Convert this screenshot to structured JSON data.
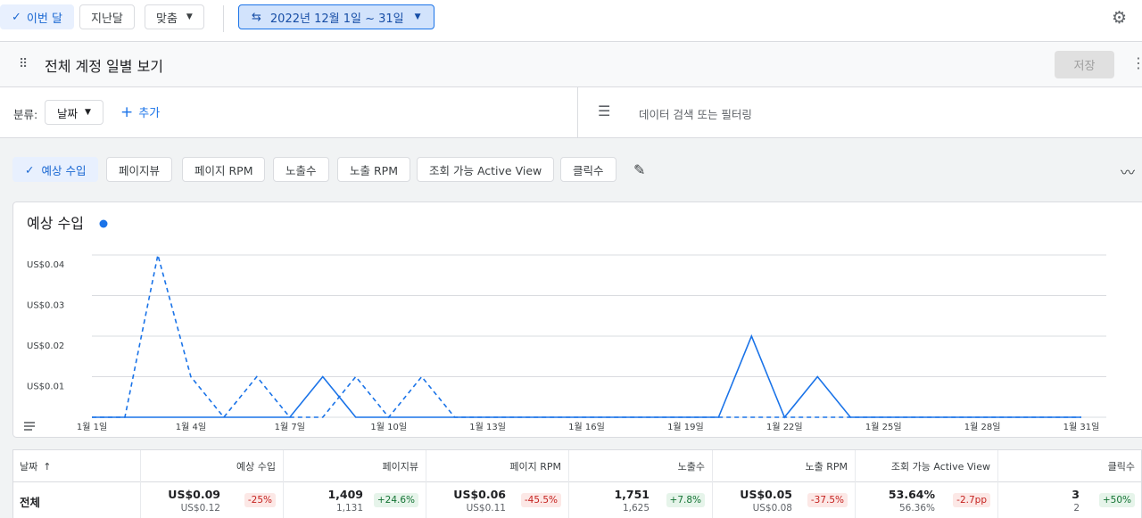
{
  "toolbar": {
    "buttons": [
      "이번 달",
      "지난달",
      "맞춤"
    ],
    "date_range": "2022년 12월 1일 ~ 31일"
  },
  "report": {
    "title": "전체 계정 일별 보기",
    "save": "저장"
  },
  "filters": {
    "group_label": "분류:",
    "group_value": "날짜",
    "add": "추가",
    "search_placeholder": "데이터 검색 또는 필터링"
  },
  "metric_chips": [
    "예상 수입",
    "페이지뷰",
    "페이지 RPM",
    "노출수",
    "노출 RPM",
    "조회 가능 Active View",
    "클릭수"
  ],
  "chart_data": {
    "type": "line",
    "title": "예상 수입",
    "categories": [
      "1월 1일",
      null,
      null,
      "1월 4일",
      null,
      null,
      "1월 7일",
      null,
      null,
      "1월 10일",
      null,
      null,
      "1월 13일",
      null,
      null,
      "1월 16일",
      null,
      null,
      "1월 19일",
      null,
      null,
      "1월 22일",
      null,
      null,
      "1월 25일",
      null,
      null,
      "1월 28일",
      null,
      null,
      "1월 31일"
    ],
    "series": [
      {
        "color": "#1a73e8",
        "line_style": "solid",
        "values": [
          0,
          0,
          0,
          0,
          0,
          0,
          0,
          0.01,
          0,
          0,
          0,
          0,
          0,
          0,
          0,
          0,
          0,
          0,
          0,
          0,
          0.02,
          0,
          0.01,
          0,
          0,
          0,
          0,
          0,
          0,
          0,
          0
        ]
      },
      {
        "color": "#1a73e8",
        "line_style": "dashed",
        "values": [
          0,
          0,
          0.04,
          0.01,
          0,
          0.01,
          0,
          0,
          0.01,
          0,
          0.01,
          0,
          0,
          0,
          0,
          0,
          0,
          0,
          0,
          0,
          0,
          0,
          0,
          0,
          0,
          0,
          0,
          0,
          0,
          0,
          0
        ]
      }
    ],
    "ylim": [
      0,
      0.04
    ],
    "yticks": [
      {
        "value": 0.01,
        "label": "US$0.01"
      },
      {
        "value": 0.02,
        "label": "US$0.02"
      },
      {
        "value": 0.03,
        "label": "US$0.03"
      },
      {
        "value": 0.04,
        "label": "US$0.04"
      }
    ],
    "grid": true
  },
  "table": {
    "headers": [
      "날짜",
      "예상 수입",
      "페이지뷰",
      "페이지 RPM",
      "노출수",
      "노출 RPM",
      "조회 가능 Active View",
      "클릭수"
    ],
    "rows": [
      [
        "전체",
        {
          "value": "US$0.09",
          "previous": "US$0.12",
          "change": "-25%"
        },
        {
          "value": "1,409",
          "previous": "1,131",
          "change": "+24.6%"
        },
        {
          "value": "US$0.06",
          "previous": "US$0.11",
          "change": "-45.5%"
        },
        {
          "value": "1,751",
          "previous": "1,625",
          "change": "+7.8%"
        },
        {
          "value": "US$0.05",
          "previous": "US$0.08",
          "change": "-37.5%"
        },
        {
          "value": "53.64%",
          "previous": "56.36%",
          "change": "-2.7pp"
        },
        {
          "value": "3",
          "previous": "2",
          "change": "+50%"
        }
      ]
    ]
  }
}
